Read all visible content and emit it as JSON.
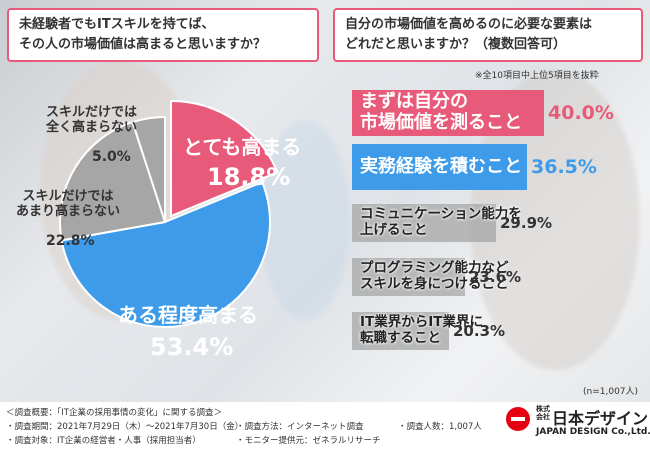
{
  "left_question": {
    "line1": "未経験者でもITスキルを持てば、",
    "line2": "その人の市場価値は高まると思いますか？"
  },
  "right_question": {
    "line1": "自分の市場価値を高めるのに必要な要素は",
    "line2": "どれだと思いますか？（複数回答可）"
  },
  "top_note": "※全10項目中上位5項目を抜粋",
  "n_note": "(n=1,007人)",
  "chart_data": [
    {
      "type": "pie",
      "title": "未経験者でもITスキルを持てば、その人の市場価値は高まると思いますか？",
      "categories": [
        "とても高まる",
        "ある程度高まる",
        "スキルだけではあまり高まらない",
        "スキルだけでは全く高まらない"
      ],
      "values": [
        18.8,
        53.4,
        22.8,
        5.0
      ],
      "value_labels": [
        "18.8%",
        "53.4%",
        "22.8%",
        "5.0%"
      ],
      "colors": [
        "#e85a79",
        "#3d9be9",
        "#a6a6a6",
        "#a6a6a6"
      ]
    },
    {
      "type": "bar",
      "orientation": "horizontal",
      "title": "自分の市場価値を高めるのに必要な要素はどれだと思いますか？（複数回答可）",
      "categories": [
        [
          "まずは自分の",
          "市場価値を測ること"
        ],
        [
          "実務経験を積むこと"
        ],
        [
          "コミュニケーション能力を",
          "上げること"
        ],
        [
          "プログラミング能力など",
          "スキルを身につけること"
        ],
        [
          "IT業界からIT業界に",
          "転職すること"
        ]
      ],
      "values": [
        40.0,
        36.5,
        29.9,
        23.6,
        20.3
      ],
      "value_labels": [
        "40.0%",
        "36.5%",
        "29.9%",
        "23.6%",
        "20.3%"
      ],
      "colors": [
        "#e85a79",
        "#3d9be9",
        "#a6a6a6",
        "#a6a6a6",
        "#a6a6a6"
      ],
      "xlim": [
        0,
        40
      ]
    }
  ],
  "footer": {
    "title": "＜調査概要：「IT企業の採用事情の変化」に関する調査＞",
    "period": "・調査期間：2021年7月29日（木）〜2021年7月30日（金）",
    "method": "・調査方法：インターネット調査",
    "count": "・調査人数：1,007人",
    "target": "・調査対象：IT企業の経営者・人事（採用担当者）",
    "provider": "・モニター提供元：ゼネラルリサーチ"
  },
  "logo": {
    "company_jp": "日本デザイン",
    "prefix": "株式会社",
    "company_en": "JAPAN DESIGN Co.,Ltd."
  }
}
